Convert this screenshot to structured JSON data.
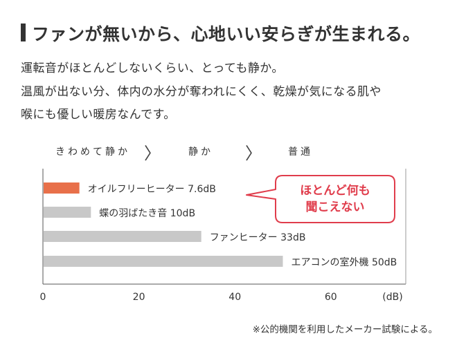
{
  "headline": "ファンが無いから、心地いい安らぎが生まれる。",
  "body_lines": [
    "運転音がほとんどしないくらい、とっても静か。",
    "温風が出ない分、体内の水分が奪われにくく、乾燥が気になる肌や",
    "喉にも優しい暖房なんです。"
  ],
  "scale": {
    "labels": [
      "きわめて静か",
      "静か",
      "普通"
    ]
  },
  "callout": {
    "lines": [
      "ほとんど何も",
      "聞こえない"
    ]
  },
  "footnote": "※公的機関を利用したメーカー試験による。",
  "colors": {
    "highlight": "#e8704a",
    "bar": "#c8c8c8",
    "callout_border": "#e03c4b",
    "callout_text": "#e03c4b",
    "text": "#333333"
  },
  "chart_data": {
    "type": "bar",
    "orientation": "horizontal",
    "unit": "dB",
    "categories": [
      "オイルフリーヒーター",
      "蝶の羽ばたき音",
      "ファンヒーター",
      "エアコンの室外機"
    ],
    "values": [
      7.6,
      10,
      33,
      50
    ],
    "data_labels": [
      "オイルフリーヒーター 7.6dB",
      "蝶の羽ばたき音 10dB",
      "ファンヒーター 33dB",
      "エアコンの室外機 50dB"
    ],
    "highlight_index": 0,
    "xlim": [
      0,
      75
    ],
    "xticks": [
      0,
      20,
      40,
      60
    ],
    "xtick_labels": [
      "0",
      "20",
      "40",
      "60"
    ],
    "xunit_label": "(dB)",
    "grid": false
  }
}
